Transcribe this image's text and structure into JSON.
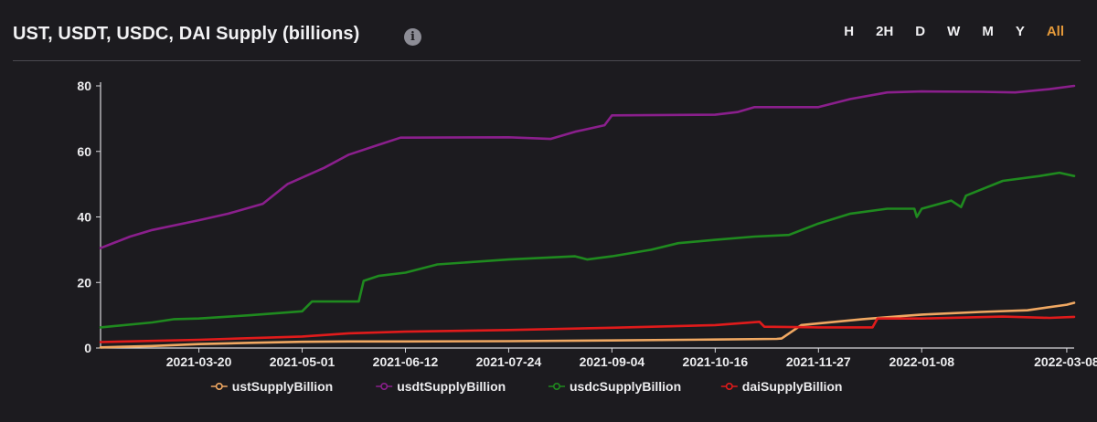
{
  "header": {
    "title": "UST, USDT, USDC, DAI Supply (billions)",
    "info_icon": "info-icon",
    "ranges": [
      {
        "label": "H",
        "active": false
      },
      {
        "label": "2H",
        "active": false
      },
      {
        "label": "D",
        "active": false
      },
      {
        "label": "W",
        "active": false
      },
      {
        "label": "M",
        "active": false
      },
      {
        "label": "Y",
        "active": false
      },
      {
        "label": "All",
        "active": true
      }
    ]
  },
  "colors": {
    "background": "#1c1b1f",
    "active_range": "#e59a3a",
    "ust": "#f0a862",
    "usdt": "#8a1f8c",
    "usdc": "#1f8a1f",
    "dai": "#e01b1b"
  },
  "chart_data": {
    "type": "line",
    "title": "UST, USDT, USDC, DAI Supply (billions)",
    "xlabel": "",
    "ylabel": "",
    "ylim": [
      0,
      80
    ],
    "yticks": [
      0,
      20,
      40,
      60,
      80
    ],
    "xlim": [
      "2021-02-08",
      "2022-03-11"
    ],
    "xticks": [
      "2021-03-20",
      "2021-05-01",
      "2021-06-12",
      "2021-07-24",
      "2021-09-04",
      "2021-10-16",
      "2021-11-27",
      "2022-01-08",
      "2022-03-08"
    ],
    "grid": false,
    "legend_position": "bottom",
    "series": [
      {
        "name": "ustSupplyBillion",
        "color": "#f0a862",
        "points": [
          [
            "2021-02-08",
            0.2
          ],
          [
            "2021-03-01",
            0.6
          ],
          [
            "2021-03-20",
            1.2
          ],
          [
            "2021-04-10",
            1.6
          ],
          [
            "2021-05-01",
            1.9
          ],
          [
            "2021-05-20",
            2.0
          ],
          [
            "2021-06-12",
            2.0
          ],
          [
            "2021-07-24",
            2.1
          ],
          [
            "2021-09-04",
            2.3
          ],
          [
            "2021-10-16",
            2.6
          ],
          [
            "2021-11-10",
            2.8
          ],
          [
            "2021-11-12",
            2.9
          ],
          [
            "2021-11-20",
            7.0
          ],
          [
            "2021-11-27",
            7.5
          ],
          [
            "2021-12-15",
            8.8
          ],
          [
            "2022-01-01",
            9.8
          ],
          [
            "2022-01-08",
            10.2
          ],
          [
            "2022-02-01",
            11.0
          ],
          [
            "2022-02-20",
            11.5
          ],
          [
            "2022-03-08",
            13.2
          ],
          [
            "2022-03-11",
            13.8
          ]
        ]
      },
      {
        "name": "usdtSupplyBillion",
        "color": "#8a1f8c",
        "points": [
          [
            "2021-02-08",
            30.5
          ],
          [
            "2021-02-20",
            34.0
          ],
          [
            "2021-03-01",
            36.0
          ],
          [
            "2021-03-20",
            39.0
          ],
          [
            "2021-04-01",
            41.0
          ],
          [
            "2021-04-15",
            44.0
          ],
          [
            "2021-04-25",
            50.0
          ],
          [
            "2021-05-01",
            52.0
          ],
          [
            "2021-05-10",
            55.0
          ],
          [
            "2021-05-20",
            59.0
          ],
          [
            "2021-06-01",
            62.0
          ],
          [
            "2021-06-10",
            64.2
          ],
          [
            "2021-06-12",
            64.2
          ],
          [
            "2021-07-24",
            64.3
          ],
          [
            "2021-08-10",
            63.8
          ],
          [
            "2021-08-20",
            66.0
          ],
          [
            "2021-09-01",
            68.0
          ],
          [
            "2021-09-04",
            71.0
          ],
          [
            "2021-10-16",
            71.2
          ],
          [
            "2021-10-25",
            72.0
          ],
          [
            "2021-11-01",
            73.5
          ],
          [
            "2021-11-27",
            73.5
          ],
          [
            "2021-12-10",
            76.0
          ],
          [
            "2021-12-25",
            78.0
          ],
          [
            "2022-01-08",
            78.3
          ],
          [
            "2022-02-01",
            78.2
          ],
          [
            "2022-02-15",
            78.0
          ],
          [
            "2022-03-01",
            79.0
          ],
          [
            "2022-03-11",
            80.0
          ]
        ]
      },
      {
        "name": "usdcSupplyBillion",
        "color": "#1f8a1f",
        "points": [
          [
            "2021-02-08",
            6.3
          ],
          [
            "2021-03-01",
            7.8
          ],
          [
            "2021-03-10",
            8.8
          ],
          [
            "2021-03-20",
            9.0
          ],
          [
            "2021-04-10",
            10.0
          ],
          [
            "2021-05-01",
            11.2
          ],
          [
            "2021-05-05",
            14.2
          ],
          [
            "2021-05-24",
            14.2
          ],
          [
            "2021-05-26",
            20.5
          ],
          [
            "2021-06-01",
            22.0
          ],
          [
            "2021-06-12",
            23.0
          ],
          [
            "2021-06-25",
            25.5
          ],
          [
            "2021-07-24",
            27.0
          ],
          [
            "2021-08-20",
            28.0
          ],
          [
            "2021-08-25",
            27.0
          ],
          [
            "2021-09-04",
            28.0
          ],
          [
            "2021-09-20",
            30.0
          ],
          [
            "2021-10-01",
            32.0
          ],
          [
            "2021-10-16",
            33.0
          ],
          [
            "2021-11-01",
            34.0
          ],
          [
            "2021-11-15",
            34.5
          ],
          [
            "2021-11-27",
            38.0
          ],
          [
            "2021-12-10",
            41.0
          ],
          [
            "2021-12-25",
            42.5
          ],
          [
            "2022-01-05",
            42.5
          ],
          [
            "2022-01-06",
            40.0
          ],
          [
            "2022-01-08",
            42.5
          ],
          [
            "2022-01-20",
            45.0
          ],
          [
            "2022-01-24",
            43.0
          ],
          [
            "2022-01-26",
            46.5
          ],
          [
            "2022-02-10",
            51.0
          ],
          [
            "2022-02-25",
            52.5
          ],
          [
            "2022-03-05",
            53.5
          ],
          [
            "2022-03-11",
            52.5
          ]
        ]
      },
      {
        "name": "daiSupplyBillion",
        "color": "#e01b1b",
        "points": [
          [
            "2021-02-08",
            1.8
          ],
          [
            "2021-03-20",
            2.5
          ],
          [
            "2021-05-01",
            3.5
          ],
          [
            "2021-05-20",
            4.5
          ],
          [
            "2021-06-12",
            5.0
          ],
          [
            "2021-07-24",
            5.5
          ],
          [
            "2021-09-04",
            6.2
          ],
          [
            "2021-10-16",
            7.0
          ],
          [
            "2021-11-03",
            8.0
          ],
          [
            "2021-11-05",
            6.5
          ],
          [
            "2021-11-27",
            6.3
          ],
          [
            "2021-12-19",
            6.3
          ],
          [
            "2021-12-21",
            9.0
          ],
          [
            "2022-01-08",
            9.0
          ],
          [
            "2022-02-10",
            9.6
          ],
          [
            "2022-03-01",
            9.2
          ],
          [
            "2022-03-11",
            9.5
          ]
        ]
      }
    ]
  }
}
